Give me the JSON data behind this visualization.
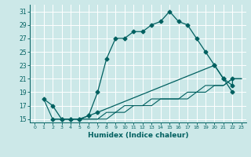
{
  "xlabel": "Humidex (Indice chaleur)",
  "bg_color": "#cce8e8",
  "grid_color": "#ffffff",
  "line_color": "#006060",
  "xlim": [
    -0.5,
    23.5
  ],
  "ylim": [
    14.5,
    32
  ],
  "xticks": [
    0,
    1,
    2,
    3,
    4,
    5,
    6,
    7,
    8,
    9,
    10,
    11,
    12,
    13,
    14,
    15,
    16,
    17,
    18,
    19,
    20,
    21,
    22,
    23
  ],
  "yticks": [
    15,
    17,
    19,
    21,
    23,
    25,
    27,
    29,
    31
  ],
  "line1_x": [
    1,
    2,
    3,
    4,
    5,
    6,
    7,
    8,
    9,
    10,
    11,
    12,
    13,
    14,
    15,
    16,
    17,
    18,
    19,
    20,
    21,
    22
  ],
  "line1_y": [
    18,
    17,
    15,
    15,
    15,
    15.5,
    19,
    24,
    27,
    27,
    28,
    28,
    29,
    29.5,
    31,
    29.5,
    29,
    27,
    25,
    23,
    21,
    19
  ],
  "line2_x": [
    2,
    3,
    4,
    5,
    6,
    7,
    20,
    21,
    22,
    22
  ],
  "line2_y": [
    15,
    15,
    15,
    15,
    15.5,
    16,
    23,
    21,
    20,
    21
  ],
  "line3_x": [
    1,
    2,
    3,
    4,
    5,
    6,
    7,
    8,
    9,
    10,
    11,
    12,
    13,
    14,
    15,
    16,
    17,
    18,
    19,
    20,
    21,
    22,
    23
  ],
  "line3_y": [
    18,
    15,
    15,
    15,
    15,
    15,
    15,
    16,
    16,
    17,
    17,
    17,
    18,
    18,
    18,
    18,
    19,
    19,
    20,
    20,
    20,
    21,
    21
  ],
  "line4_x": [
    2,
    3,
    4,
    5,
    6,
    7,
    8,
    9,
    10,
    11,
    12,
    13,
    14,
    15,
    16,
    17,
    18,
    19,
    20,
    21,
    22,
    23
  ],
  "line4_y": [
    15,
    15,
    15,
    15,
    15,
    15,
    15,
    16,
    16,
    17,
    17,
    17,
    18,
    18,
    18,
    18,
    19,
    19,
    20,
    20,
    21,
    21
  ]
}
